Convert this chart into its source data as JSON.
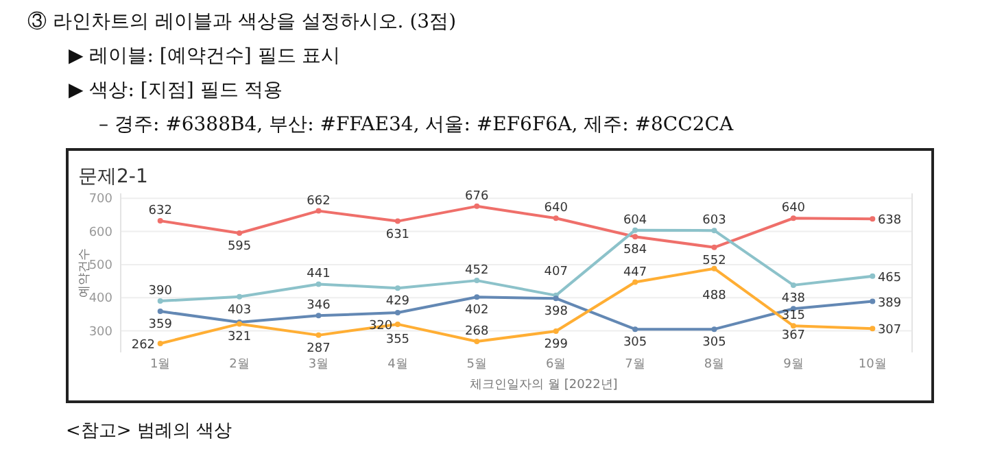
{
  "chart_data": {
    "type": "line",
    "title": "문제2-1",
    "xlabel": "체크인일자의 월 [2022년]",
    "ylabel": "예약건수",
    "annotations": [
      "③ 라인차트의 레이블과 색상을 설정하시오. (3점)",
      "▶ 레이블: [예약건수] 필드 표시",
      "▶ 색상: [지점] 필드 적용",
      "– 경주: #6388B4, 부산: #FFAE34, 서울: #EF6F6A, 제주: #8CC2CA",
      "<참고> 범례의 색상"
    ],
    "categories": [
      "1월",
      "2월",
      "3월",
      "4월",
      "5월",
      "6월",
      "7월",
      "8월",
      "9월",
      "10월"
    ],
    "series": [
      {
        "color": "#ef6f6a",
        "values": [
          632,
          595,
          662,
          631,
          676,
          640,
          584,
          552,
          640,
          638
        ],
        "value_labels": [
          "632",
          "595",
          "662",
          "631",
          "676",
          "640",
          "584",
          "552",
          "640",
          "638"
        ]
      },
      {
        "color": "#8cc2ca",
        "values": [
          390,
          403,
          441,
          429,
          452,
          407,
          604,
          603,
          438,
          465
        ],
        "value_labels": [
          "390",
          "403",
          "441",
          "429",
          "452",
          "407",
          "604",
          "603",
          "438",
          "465"
        ]
      },
      {
        "color": "#6388b4",
        "values": [
          359,
          326,
          346,
          355,
          402,
          398,
          305,
          305,
          367,
          389
        ],
        "value_labels": [
          "359",
          null,
          "346",
          "355",
          "402",
          "398",
          "305",
          "305",
          "367",
          "389"
        ]
      },
      {
        "color": "#ffae34",
        "values": [
          262,
          321,
          287,
          320,
          268,
          299,
          447,
          488,
          315,
          307
        ],
        "value_labels": [
          "262",
          "321",
          "287",
          "320",
          "268",
          "299",
          "447",
          "488",
          "315",
          "307"
        ]
      }
    ],
    "ylim": [
      235,
      715
    ],
    "yticks": [
      300,
      400,
      500,
      600,
      700
    ],
    "grid": "y",
    "marker": "circle",
    "line_style": "solid"
  }
}
